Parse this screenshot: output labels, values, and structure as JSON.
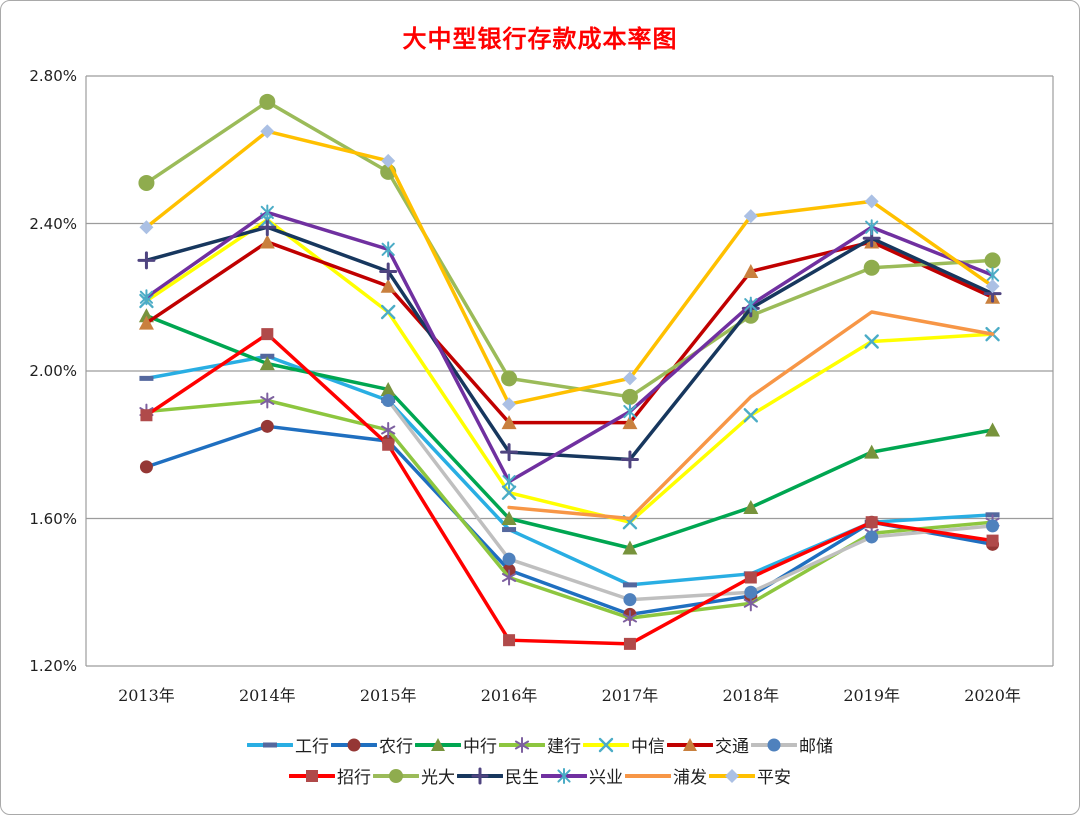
{
  "chart_data": {
    "type": "line",
    "title": "大中型银行存款成本率图",
    "title_color": "#FF0000",
    "categories": [
      "2013年",
      "2014年",
      "2015年",
      "2016年",
      "2017年",
      "2018年",
      "2019年",
      "2020年"
    ],
    "y_ticks": [
      {
        "label": "2.80%",
        "value": 2.8
      },
      {
        "label": "2.40%",
        "value": 2.4
      },
      {
        "label": "2.00%",
        "value": 2.0
      },
      {
        "label": "1.60%",
        "value": 1.6
      },
      {
        "label": "1.20%",
        "value": 1.2
      }
    ],
    "ylim": [
      1.2,
      2.8
    ],
    "unit": "%",
    "grid": true,
    "legend_position": "bottom",
    "legend_rows": [
      7,
      6
    ],
    "series": [
      {
        "key": "icbc",
        "name": "工行",
        "line_color": "#29AEE3",
        "marker": "dash",
        "marker_color": "#54689E",
        "marker_size": 14,
        "values": [
          1.98,
          2.04,
          1.92,
          1.57,
          1.42,
          1.45,
          1.59,
          1.61
        ]
      },
      {
        "key": "abc",
        "name": "农行",
        "line_color": "#1F6FC0",
        "marker": "circle",
        "marker_color": "#953735",
        "marker_size": 13,
        "values": [
          1.74,
          1.85,
          1.81,
          1.46,
          1.34,
          1.39,
          1.59,
          1.53
        ]
      },
      {
        "key": "boc",
        "name": "中行",
        "line_color": "#00A651",
        "marker": "triangle",
        "marker_color": "#77933C",
        "marker_size": 15,
        "values": [
          2.15,
          2.02,
          1.95,
          1.6,
          1.52,
          1.63,
          1.78,
          1.84
        ]
      },
      {
        "key": "ccb",
        "name": "建行",
        "line_color": "#8DC63F",
        "marker": "asterisk",
        "marker_color": "#7D60A0",
        "marker_size": 14,
        "values": [
          1.89,
          1.92,
          1.84,
          1.44,
          1.33,
          1.37,
          1.56,
          1.59
        ]
      },
      {
        "key": "citic",
        "name": "中信",
        "line_color": "#FFFF00",
        "marker": "x",
        "marker_color": "#4BACC6",
        "marker_size": 12,
        "values": [
          2.19,
          2.41,
          2.16,
          1.67,
          1.59,
          1.88,
          2.08,
          2.1
        ]
      },
      {
        "key": "bocom",
        "name": "交通",
        "line_color": "#C00000",
        "marker": "triangle",
        "marker_color": "#C9803E",
        "marker_size": 15,
        "values": [
          2.13,
          2.35,
          2.23,
          1.86,
          1.86,
          2.27,
          2.35,
          2.2
        ]
      },
      {
        "key": "psbc",
        "name": "邮储",
        "line_color": "#BFBFBF",
        "marker": "circle",
        "marker_color": "#4F81BD",
        "marker_size": 13,
        "values": [
          null,
          null,
          1.92,
          1.49,
          1.38,
          1.4,
          1.55,
          1.58
        ]
      },
      {
        "key": "cmb",
        "name": "招行",
        "line_color": "#FF0000",
        "marker": "square",
        "marker_color": "#B04A4A",
        "marker_size": 12,
        "values": [
          1.88,
          2.1,
          1.8,
          1.27,
          1.26,
          1.44,
          1.59,
          1.54
        ]
      },
      {
        "key": "ceb",
        "name": "光大",
        "line_color": "#9BBB59",
        "marker": "circle",
        "marker_color": "#8FAC4E",
        "marker_size": 16,
        "values": [
          2.51,
          2.73,
          2.54,
          1.98,
          1.93,
          2.15,
          2.28,
          2.3
        ]
      },
      {
        "key": "minsheng",
        "name": "民生",
        "line_color": "#17375E",
        "marker": "plus",
        "marker_color": "#4F4480",
        "marker_size": 15,
        "values": [
          2.3,
          2.39,
          2.27,
          1.78,
          1.76,
          2.17,
          2.36,
          2.21
        ]
      },
      {
        "key": "cib",
        "name": "兴业",
        "line_color": "#7030A0",
        "marker": "star",
        "marker_color": "#4BACC6",
        "marker_size": 14,
        "values": [
          2.2,
          2.43,
          2.33,
          1.7,
          1.89,
          2.18,
          2.39,
          2.26
        ]
      },
      {
        "key": "spdb",
        "name": "浦发",
        "line_color": "#F79646",
        "marker": "none",
        "marker_color": "#F79646",
        "marker_size": 0,
        "values": [
          null,
          null,
          null,
          1.63,
          1.6,
          1.93,
          2.16,
          2.1
        ]
      },
      {
        "key": "pingan",
        "name": "平安",
        "line_color": "#FFC000",
        "marker": "diamond",
        "marker_color": "#ABC0E4",
        "marker_size": 14,
        "values": [
          2.39,
          2.65,
          2.57,
          1.91,
          1.98,
          2.42,
          2.46,
          2.23
        ]
      }
    ]
  }
}
